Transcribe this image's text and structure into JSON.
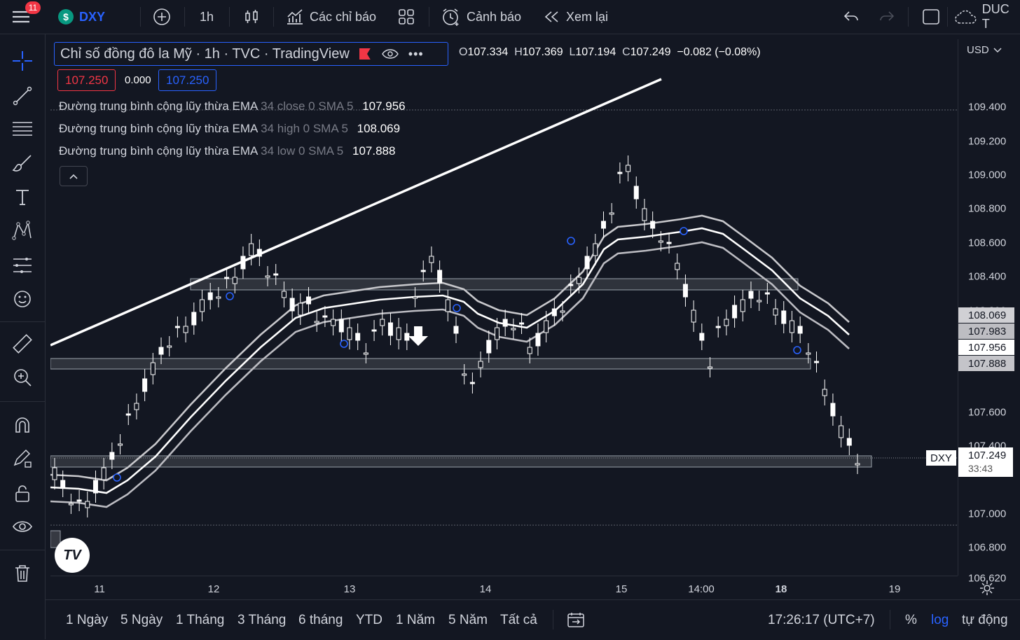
{
  "topbar": {
    "notifications": "11",
    "symbol": "DXY",
    "symbol_icon": "$",
    "interval": "1h",
    "indicators": "Các chỉ báo",
    "alerts": "Cảnh báo",
    "replay": "Xem lại",
    "user": "DUC T"
  },
  "legend": {
    "title": "Chỉ số đồng đô la Mỹ · 1h · TVC · TradingView",
    "ohlc": [
      {
        "k": "O",
        "v": "107.334"
      },
      {
        "k": "H",
        "v": "107.369"
      },
      {
        "k": "L",
        "v": "107.194"
      },
      {
        "k": "C",
        "v": "107.249"
      }
    ],
    "change": "−0.082 (−0.08%)",
    "bid": "107.250",
    "spread": "0.000",
    "ask": "107.250"
  },
  "indicators": [
    {
      "name": "Đường trung bình cộng lũy thừa EMA",
      "params": "34 close 0 SMA 5",
      "value": "107.956"
    },
    {
      "name": "Đường trung bình cộng lũy thừa EMA",
      "params": "34 high 0 SMA 5",
      "value": "108.069"
    },
    {
      "name": "Đường trung bình cộng lũy thừa EMA",
      "params": "34 low 0 SMA 5",
      "value": "107.888"
    }
  ],
  "price_axis": {
    "currency": "USD",
    "labels": [
      "109.400",
      "109.200",
      "109.000",
      "108.800",
      "108.600",
      "108.400",
      "108.200",
      "107.600",
      "107.400",
      "107.000",
      "106.800",
      "106.620"
    ],
    "tags": [
      {
        "text": "108.069",
        "style": "grey"
      },
      {
        "text": "107.983",
        "style": "dark"
      },
      {
        "text": "107.956",
        "style": "white"
      },
      {
        "text": "107.888",
        "style": "grey"
      }
    ],
    "last_price": "107.249",
    "countdown": "33:43",
    "symbol_tag": "DXY"
  },
  "time_axis": {
    "labels": [
      "11",
      "12",
      "13",
      "14",
      "15",
      "14:00",
      "18",
      "19"
    ]
  },
  "bottombar": {
    "ranges": [
      "1 Ngày",
      "5 Ngày",
      "1 Tháng",
      "3 Tháng",
      "6 tháng",
      "YTD",
      "1 Năm",
      "5 Năm",
      "Tất cả"
    ],
    "clock": "17:26:17 (UTC+7)",
    "percent": "%",
    "log": "log",
    "auto": "tự động"
  },
  "colors": {
    "background": "#131722",
    "up": "#ffffff",
    "down": "#ffffff",
    "accent": "#2962ff",
    "bid": "#f23645",
    "ema_close": "#ffffff",
    "ema_band": "#c8c8cc"
  }
}
